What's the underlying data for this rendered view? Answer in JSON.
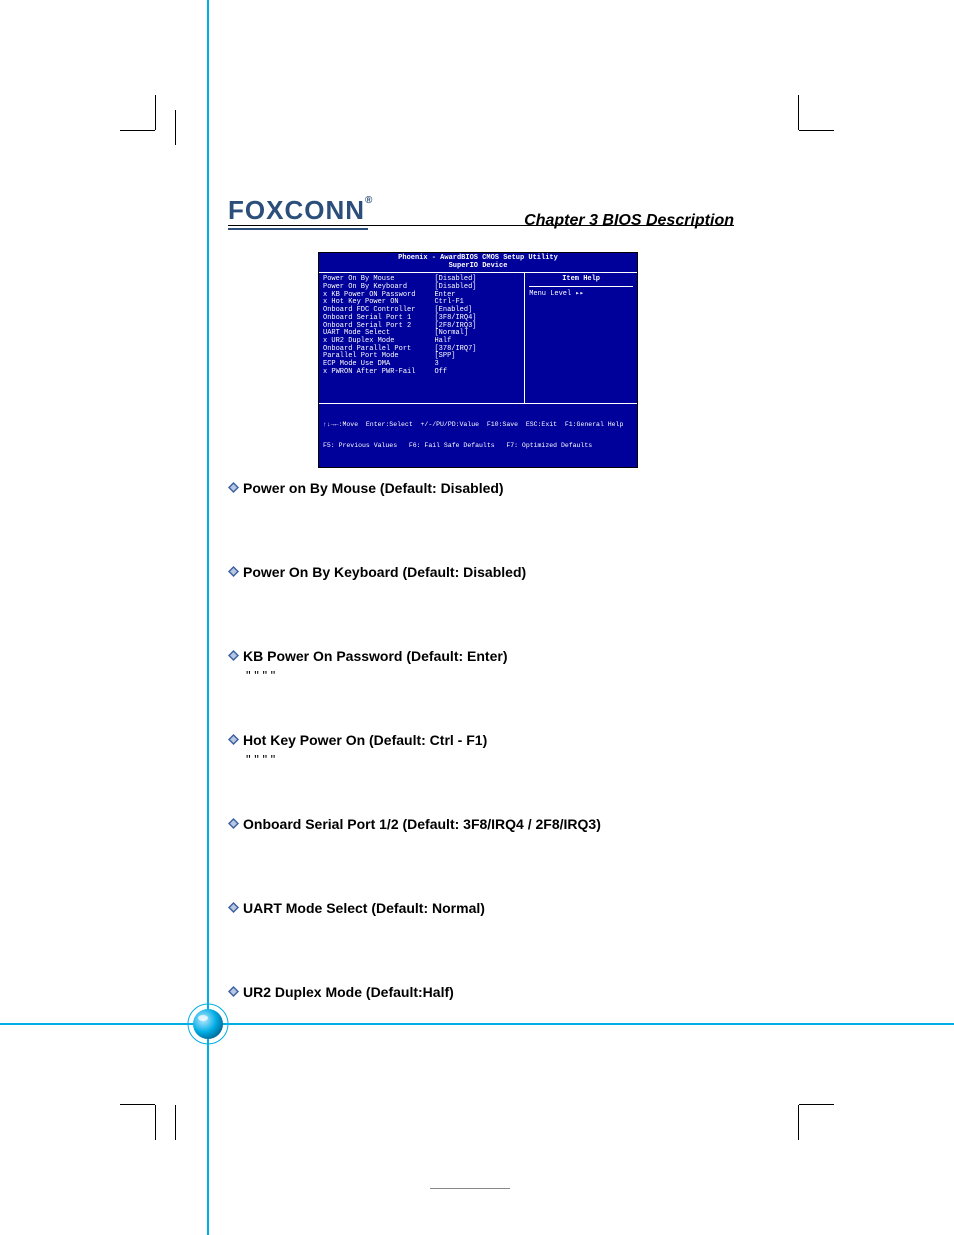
{
  "header": {
    "logo_text": "FOXCONN",
    "logo_superscript": "®",
    "chapter_label": "Chapter 3    BIOS Description"
  },
  "bios": {
    "title_line1": "Phoenix - AwardBIOS CMOS Setup Utility",
    "title_line2": "SuperIO Device",
    "items": [
      {
        "label": "Power On By Mouse",
        "value": "[Disabled]"
      },
      {
        "label": "Power On By Keyboard",
        "value": "[Disabled]"
      },
      {
        "label": "x KB Power ON Password",
        "value": "Enter"
      },
      {
        "label": "x Hot Key Power ON",
        "value": "Ctrl-F1"
      },
      {
        "label": "Onboard FDC Controller",
        "value": "[Enabled]"
      },
      {
        "label": "Onboard Serial Port 1",
        "value": "[3F8/IRQ4]"
      },
      {
        "label": "Onboard Serial Port 2",
        "value": "[2F8/IRQ3]"
      },
      {
        "label": "UART Mode Select",
        "value": "[Normal]"
      },
      {
        "label": "x UR2 Duplex Mode",
        "value": "Half"
      },
      {
        "label": "Onboard Parallel Port",
        "value": "[378/IRQ7]"
      },
      {
        "label": "Parallel Port Mode",
        "value": "[SPP]"
      },
      {
        "label": "ECP Mode Use DMA",
        "value": "3"
      },
      {
        "label": "x PWRON After PWR-Fail",
        "value": "Off"
      }
    ],
    "help_title": "Item Help",
    "menu_level": "Menu Level    ▸▸",
    "footer_line1": "↑↓→←:Move  Enter:Select  +/-/PU/PD:Value  F10:Save  ESC:Exit  F1:General Help",
    "footer_line2": "F5: Previous Values   F6: Fail Safe Defaults   F7: Optimized Defaults"
  },
  "sections": [
    {
      "heading": "Power on By Mouse (Default: Disabled)",
      "body": ""
    },
    {
      "heading": "Power On By Keyboard (Default: Disabled)",
      "body": ""
    },
    {
      "heading": "KB Power On Password (Default: Enter)",
      "body": "\"                              \"              \"              \""
    },
    {
      "heading": "Hot Key Power On (Default: Ctrl - F1)",
      "body": "\"                              \"              \"           \""
    },
    {
      "heading": "Onboard Serial Port 1/2 (Default: 3F8/IRQ4 / 2F8/IRQ3)",
      "body": ""
    },
    {
      "heading": "UART Mode Select (Default: Normal)",
      "body": ""
    },
    {
      "heading": "UR2 Duplex Mode (Default:Half)",
      "body": ""
    }
  ],
  "colors": {
    "logo": "#2b4f7a",
    "bios_bg": "#00009a",
    "accent": "#00aee6",
    "bullet_outer": "#3a5fa0",
    "bullet_inner": "#b8c6e0"
  }
}
